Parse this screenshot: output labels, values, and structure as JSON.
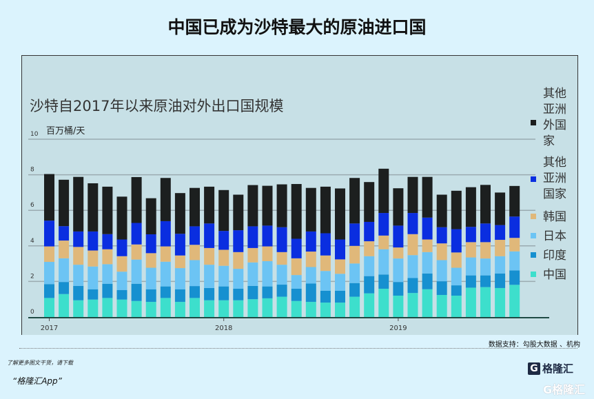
{
  "main_title": "中国已成为沙特最大的原油进口国",
  "source": "数据支持：勾股大数据 、机构",
  "promo_line1": "了解更多图文干货，请下载",
  "promo_line2": "“格隆汇App”",
  "logo_text": "格隆汇",
  "logo_mark": "G",
  "chart_data": {
    "type": "bar",
    "stacked": true,
    "title": "沙特自2017年以来原油对外出口国规模",
    "ylabel": "百万桶/天",
    "ylim": [
      0,
      10
    ],
    "yticks": [
      "0",
      "2",
      "4",
      "6",
      "8",
      "10"
    ],
    "xticks": [
      {
        "label": "2017",
        "index": 0
      },
      {
        "label": "2018",
        "index": 12
      },
      {
        "label": "2019",
        "index": 24
      }
    ],
    "legend_position": "right",
    "series": [
      {
        "name": "中国",
        "color": "#3ddfcc",
        "values": [
          1.07,
          1.29,
          0.94,
          0.98,
          1.07,
          0.98,
          0.9,
          0.85,
          1.07,
          0.85,
          1.07,
          0.94,
          0.94,
          0.94,
          1.0,
          1.05,
          1.14,
          0.9,
          0.85,
          0.81,
          0.81,
          1.14,
          1.33,
          1.59,
          1.2,
          1.35,
          1.56,
          1.24,
          1.2,
          1.65,
          1.68,
          1.63,
          1.81
        ]
      },
      {
        "name": "印度",
        "color": "#1690d0",
        "values": [
          0.78,
          0.68,
          0.81,
          0.58,
          0.8,
          0.54,
          0.97,
          0.71,
          0.65,
          0.71,
          0.67,
          0.69,
          0.78,
          0.65,
          0.75,
          0.67,
          0.68,
          0.69,
          1.03,
          0.67,
          0.67,
          0.77,
          0.97,
          0.8,
          0.77,
          0.84,
          0.89,
          0.77,
          0.58,
          0.69,
          0.66,
          0.82,
          0.81
        ]
      },
      {
        "name": "日本",
        "color": "#6cc4f4",
        "values": [
          1.25,
          1.33,
          1.19,
          1.28,
          1.1,
          1.03,
          1.36,
          1.21,
          1.39,
          1.19,
          1.46,
          1.31,
          1.16,
          1.12,
          1.32,
          1.42,
          1.12,
          0.77,
          0.93,
          1.11,
          0.95,
          1.1,
          1.12,
          1.42,
          1.32,
          1.29,
          1.2,
          1.19,
          0.99,
          1.01,
          0.95,
          0.97,
          1.07
        ]
      },
      {
        "name": "韩国",
        "color": "#e0b87a",
        "values": [
          0.87,
          1.0,
          1.0,
          0.9,
          0.84,
          0.87,
          0.85,
          0.82,
          0.86,
          0.71,
          0.86,
          0.94,
          0.9,
          0.94,
          0.81,
          0.83,
          0.71,
          0.94,
          0.87,
          0.87,
          0.81,
          0.99,
          0.84,
          0.77,
          0.62,
          1.18,
          0.71,
          0.94,
          0.86,
          0.86,
          0.92,
          0.92,
          0.76
        ]
      },
      {
        "name": "其他亚洲国家",
        "color": "#0a2ee0",
        "values": [
          1.45,
          0.81,
          0.87,
          1.07,
          0.85,
          0.94,
          1.21,
          1.06,
          1.42,
          1.22,
          1.04,
          1.38,
          1.06,
          1.23,
          1.22,
          1.17,
          1.4,
          1.1,
          1.13,
          1.25,
          1.12,
          1.26,
          1.09,
          1.27,
          1.23,
          1.19,
          1.23,
          0.91,
          1.31,
          0.86,
          1.05,
          0.83,
          1.2
        ]
      },
      {
        "name": "其他亚洲外国家",
        "color": "#1c1f1f",
        "values": [
          2.62,
          2.61,
          3.07,
          2.71,
          2.67,
          2.41,
          2.58,
          2.03,
          2.43,
          2.29,
          2.16,
          2.07,
          2.3,
          2.0,
          2.32,
          2.24,
          2.41,
          3.08,
          2.45,
          2.62,
          2.87,
          2.56,
          2.24,
          2.49,
          2.1,
          2.03,
          2.29,
          1.83,
          2.16,
          2.23,
          2.17,
          1.83,
          1.72
        ]
      }
    ]
  }
}
